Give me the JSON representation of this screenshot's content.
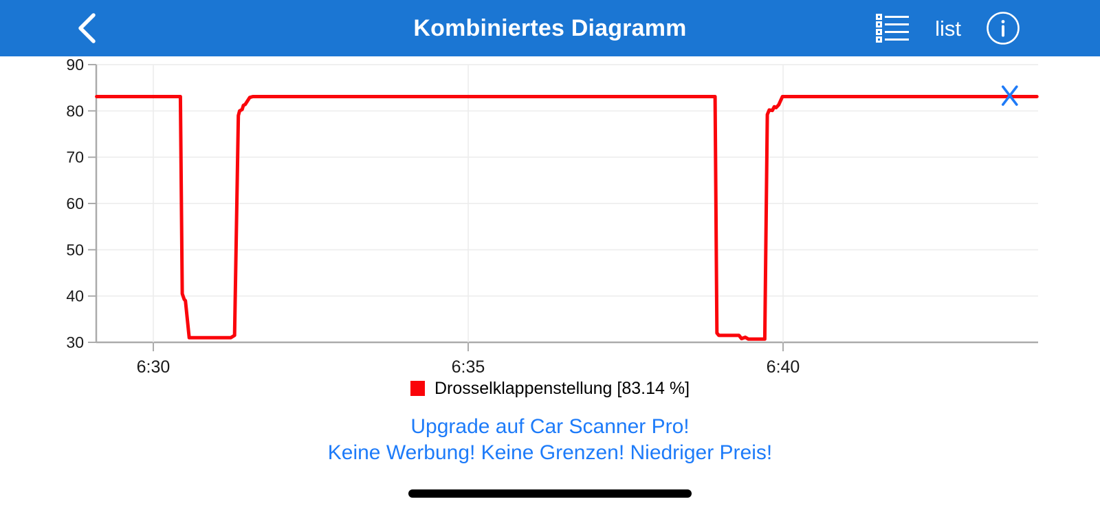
{
  "header": {
    "title": "Kombiniertes Diagramm",
    "list_label": "list",
    "background_color": "#1b76d3"
  },
  "legend": {
    "label": "Drosselklappenstellung [83.14 %]",
    "swatch_color": "#fa0409"
  },
  "promo": {
    "line1": "Upgrade auf Car Scanner Pro!",
    "line2": "Keine Werbung! Keine Grenzen! Niedriger Preis!",
    "color": "#1d7bf9"
  },
  "chart_data": {
    "type": "line",
    "title": "",
    "xlabel": "",
    "ylabel": "",
    "y_unit": "%",
    "ylim": [
      30,
      90
    ],
    "xlim_minutes": [
      29.1,
      44.05
    ],
    "grid": true,
    "y_ticks": [
      90,
      80,
      70,
      60,
      50,
      40,
      30
    ],
    "x_ticks": [
      {
        "minute": 30,
        "label": "6:30"
      },
      {
        "minute": 35,
        "label": "6:35"
      },
      {
        "minute": 40,
        "label": "6:40"
      }
    ],
    "series": [
      {
        "name": "Drosselklappenstellung",
        "current_value": "83.14 %",
        "color": "#fa060b",
        "points_minute_value": [
          [
            29.1,
            83.1
          ],
          [
            30.43,
            83.1
          ],
          [
            30.46,
            40.5
          ],
          [
            30.49,
            39.3
          ],
          [
            30.51,
            39.0
          ],
          [
            30.57,
            31.0
          ],
          [
            31.23,
            31.0
          ],
          [
            31.29,
            31.5
          ],
          [
            31.35,
            79.0
          ],
          [
            31.37,
            80.0
          ],
          [
            31.41,
            80.3
          ],
          [
            31.43,
            81.2
          ],
          [
            31.46,
            81.4
          ],
          [
            31.53,
            82.9
          ],
          [
            31.58,
            83.1
          ],
          [
            38.92,
            83.1
          ],
          [
            38.95,
            32.0
          ],
          [
            38.98,
            31.5
          ],
          [
            39.3,
            31.5
          ],
          [
            39.34,
            30.8
          ],
          [
            39.4,
            31.1
          ],
          [
            39.45,
            30.7
          ],
          [
            39.71,
            30.7
          ],
          [
            39.75,
            79.2
          ],
          [
            39.78,
            80.2
          ],
          [
            39.83,
            80.1
          ],
          [
            39.86,
            80.9
          ],
          [
            39.89,
            80.7
          ],
          [
            39.93,
            81.3
          ],
          [
            39.99,
            83.1
          ],
          [
            44.03,
            83.1
          ]
        ]
      }
    ],
    "marker": {
      "shape": "x",
      "color": "#1f7bf7",
      "x_minute": 43.6,
      "value": 83.3
    },
    "legend_position": "bottom",
    "axis_color": "#ababab",
    "gridline_color": "#ececec",
    "tick_label_color": "#1a1a1a"
  }
}
